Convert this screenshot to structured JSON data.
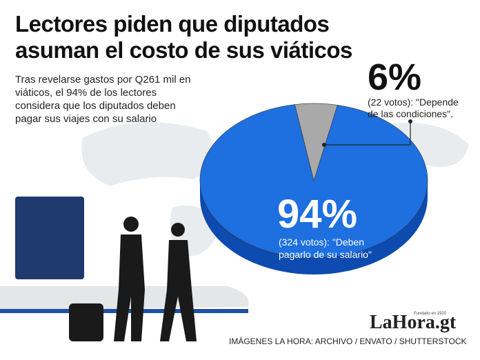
{
  "chart_data": {
    "type": "pie",
    "title": "Lectores piden que diputados asuman el costo de sus viáticos",
    "subtitle": "Tras revelarse gastos por Q261 mil en viáticos, el 94% de los lectores considera que los diputados deben pagar sus viajes con su salario",
    "categories": [
      "(324 votos): \"Deben pagarlo de su salario\"",
      "(22 votos): \"Depende de las condiciones\"."
    ],
    "values": [
      94,
      6
    ],
    "value_labels": [
      "94%",
      "6%"
    ],
    "colors": [
      "#1e6fdf",
      "#a9a9a9"
    ],
    "logo": "LaHora.gt",
    "logo_tagline": "Fundado en 1920",
    "source": "IMÁGENES LA HORA: ARCHIVO / ENVATO / SHUTTERSTOCK"
  }
}
